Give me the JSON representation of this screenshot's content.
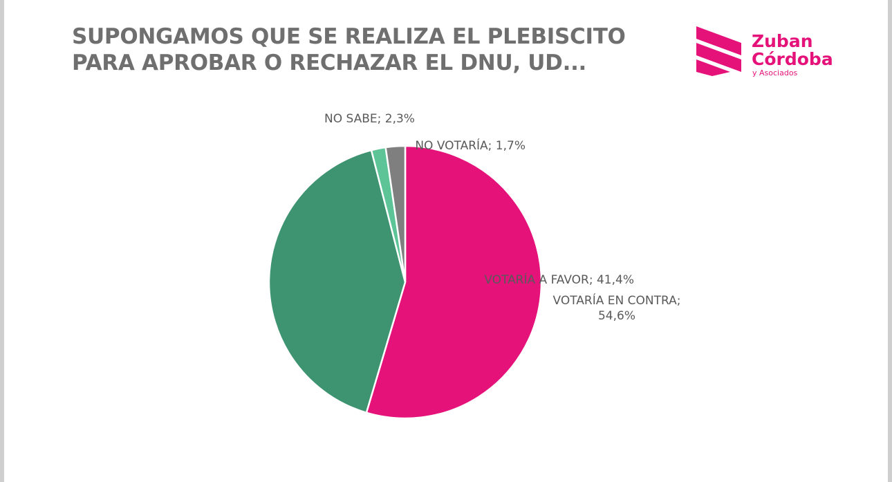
{
  "chart_data": {
    "type": "pie",
    "title": "SUPONGAMOS QUE SE REALIZA EL PLEBISCITO PARA APROBAR O RECHAZAR EL DNU, UD...",
    "values": [
      54.6,
      41.4,
      1.7,
      2.3
    ],
    "value_labels": [
      "VOTARÍA EN CONTRA; 54,6%",
      "VOTARÍA A FAVOR; 41,4%",
      "NO VOTARÍA; 1,7%",
      "NO SABE; 2,3%"
    ],
    "colors": [
      "#e5127a",
      "#3e9471",
      "#5cc497",
      "#7f7f7f"
    ]
  },
  "logo": {
    "line1": "Zuban",
    "line2": "Córdoba",
    "line3": "y Asociados"
  }
}
